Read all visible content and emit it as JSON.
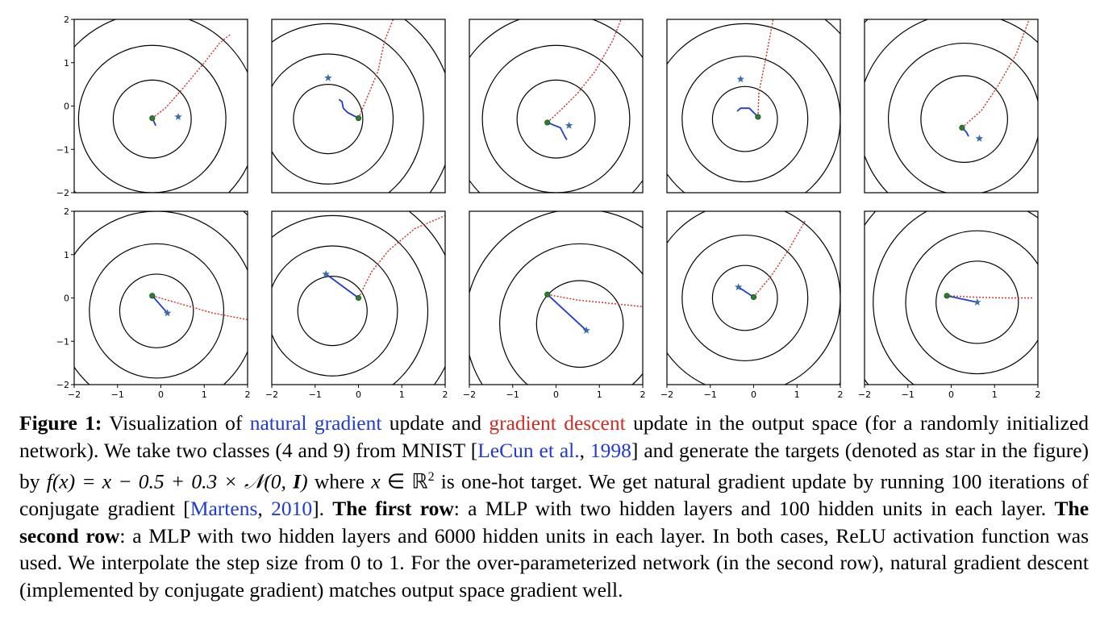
{
  "colors": {
    "natural_gradient": "#1f3ad6",
    "gradient_descent": "#d42a20",
    "star": "#3a6ab0",
    "origin_dot": "#2e7d32",
    "contour": "#000000",
    "caption_blue": "#1f3ad6",
    "caption_red": "#d42a20"
  },
  "chart_data": {
    "type": "scatter",
    "layout": "2 rows x 5 panels",
    "xlim": [
      -2,
      2
    ],
    "ylim": [
      -2,
      2
    ],
    "x_ticks": [
      "−2",
      "−1",
      "0",
      "1",
      "2"
    ],
    "y_ticks": [
      "2",
      "1",
      "0",
      "−1",
      "−2"
    ],
    "legend": "none",
    "grid": false,
    "panels": [
      {
        "row": 1,
        "col": 1,
        "center": [
          -0.2,
          -0.3
        ],
        "start": [
          -0.2,
          -0.28
        ],
        "target": [
          0.4,
          -0.25
        ],
        "contour_radii": [
          0.9,
          1.7,
          2.45,
          3.25
        ],
        "ng_path": [
          [
            -0.2,
            -0.28
          ],
          [
            -0.15,
            -0.38
          ],
          [
            -0.12,
            -0.45
          ]
        ],
        "gd_path": [
          [
            -0.2,
            -0.28
          ],
          [
            0.1,
            -0.05
          ],
          [
            0.5,
            0.4
          ],
          [
            1.0,
            1.0
          ],
          [
            1.35,
            1.45
          ],
          [
            1.6,
            1.65
          ]
        ]
      },
      {
        "row": 1,
        "col": 2,
        "center": [
          -0.7,
          -0.3
        ],
        "start": [
          0.0,
          -0.28
        ],
        "target": [
          -0.7,
          0.65
        ],
        "contour_radii": [
          0.8,
          1.5,
          2.2,
          2.9
        ],
        "ng_path": [
          [
            0.0,
            -0.28
          ],
          [
            -0.25,
            -0.15
          ],
          [
            -0.35,
            -0.05
          ],
          [
            -0.38,
            0.1
          ],
          [
            -0.45,
            0.15
          ]
        ],
        "gd_path": [
          [
            0.0,
            -0.28
          ],
          [
            0.2,
            0.2
          ],
          [
            0.45,
            0.8
          ],
          [
            0.6,
            1.5
          ],
          [
            0.8,
            2.0
          ]
        ]
      },
      {
        "row": 1,
        "col": 3,
        "center": [
          0.0,
          -0.3
        ],
        "start": [
          -0.2,
          -0.38
        ],
        "target": [
          0.3,
          -0.45
        ],
        "contour_radii": [
          0.9,
          1.7,
          2.45,
          3.25
        ],
        "ng_path": [
          [
            -0.2,
            -0.38
          ],
          [
            0.1,
            -0.5
          ],
          [
            0.2,
            -0.7
          ],
          [
            0.25,
            -0.78
          ]
        ],
        "gd_path": [
          [
            -0.2,
            -0.38
          ],
          [
            0.1,
            -0.1
          ],
          [
            0.5,
            0.3
          ],
          [
            0.9,
            0.8
          ],
          [
            1.3,
            1.5
          ],
          [
            1.5,
            2.0
          ]
        ]
      },
      {
        "row": 1,
        "col": 4,
        "center": [
          -0.2,
          -0.3
        ],
        "start": [
          0.1,
          -0.25
        ],
        "target": [
          -0.3,
          0.62
        ],
        "contour_radii": [
          0.75,
          1.45,
          2.2,
          2.95
        ],
        "ng_path": [
          [
            0.1,
            -0.25
          ],
          [
            -0.1,
            -0.05
          ],
          [
            -0.3,
            -0.05
          ],
          [
            -0.38,
            -0.12
          ]
        ],
        "gd_path": [
          [
            0.1,
            -0.25
          ],
          [
            0.12,
            0.3
          ],
          [
            0.3,
            1.2
          ],
          [
            0.45,
            2.0
          ]
        ]
      },
      {
        "row": 1,
        "col": 5,
        "center": [
          0.3,
          -0.3
        ],
        "start": [
          0.25,
          -0.5
        ],
        "target": [
          0.65,
          -0.75
        ],
        "contour_radii": [
          1.0,
          1.75,
          2.45,
          3.2
        ],
        "ng_path": [
          [
            0.25,
            -0.5
          ],
          [
            0.35,
            -0.6
          ],
          [
            0.4,
            -0.7
          ]
        ],
        "gd_path": [
          [
            0.25,
            -0.5
          ],
          [
            0.7,
            -0.1
          ],
          [
            1.1,
            0.5
          ],
          [
            1.5,
            1.2
          ],
          [
            1.8,
            2.0
          ]
        ]
      },
      {
        "row": 2,
        "col": 1,
        "center": [
          -0.1,
          -0.3
        ],
        "start": [
          -0.2,
          0.05
        ],
        "target": [
          0.15,
          -0.35
        ],
        "contour_radii": [
          0.85,
          1.55,
          2.3,
          3.05
        ],
        "ng_path": [
          [
            -0.2,
            0.05
          ],
          [
            0.15,
            -0.35
          ]
        ],
        "gd_path": [
          [
            -0.2,
            0.05
          ],
          [
            0.5,
            -0.15
          ],
          [
            1.2,
            -0.35
          ],
          [
            2.0,
            -0.5
          ]
        ]
      },
      {
        "row": 2,
        "col": 2,
        "center": [
          -0.6,
          -0.3
        ],
        "start": [
          0.0,
          0.0
        ],
        "target": [
          -0.75,
          0.55
        ],
        "contour_radii": [
          0.8,
          1.5,
          2.2,
          2.9
        ],
        "ng_path": [
          [
            0.0,
            0.0
          ],
          [
            -0.75,
            0.55
          ]
        ],
        "gd_path": [
          [
            0.0,
            0.0
          ],
          [
            0.3,
            0.6
          ],
          [
            0.7,
            1.1
          ],
          [
            1.3,
            1.6
          ],
          [
            2.0,
            1.9
          ]
        ]
      },
      {
        "row": 2,
        "col": 3,
        "center": [
          0.55,
          -0.6
        ],
        "start": [
          -0.2,
          0.08
        ],
        "target": [
          0.7,
          -0.75
        ],
        "contour_radii": [
          1.0,
          1.85,
          2.65
        ],
        "ng_path": [
          [
            -0.2,
            0.08
          ],
          [
            0.7,
            -0.75
          ]
        ],
        "gd_path": [
          [
            -0.2,
            0.08
          ],
          [
            0.5,
            -0.05
          ],
          [
            1.2,
            -0.12
          ],
          [
            2.0,
            -0.2
          ]
        ]
      },
      {
        "row": 2,
        "col": 4,
        "center": [
          -0.2,
          0.0
        ],
        "start": [
          0.0,
          0.02
        ],
        "target": [
          -0.35,
          0.25
        ],
        "contour_radii": [
          0.75,
          1.45,
          2.2,
          2.95
        ],
        "ng_path": [
          [
            0.0,
            0.02
          ],
          [
            -0.35,
            0.25
          ]
        ],
        "gd_path": [
          [
            0.0,
            0.02
          ],
          [
            0.4,
            0.5
          ],
          [
            0.8,
            1.1
          ],
          [
            1.2,
            1.8
          ]
        ]
      },
      {
        "row": 2,
        "col": 5,
        "center": [
          0.6,
          -0.1
        ],
        "start": [
          -0.1,
          0.05
        ],
        "target": [
          0.6,
          -0.1
        ],
        "contour_radii": [
          0.95,
          1.65,
          2.4,
          3.15
        ],
        "ng_path": [
          [
            -0.1,
            0.05
          ],
          [
            0.6,
            -0.1
          ]
        ],
        "gd_path": [
          [
            -0.1,
            0.05
          ],
          [
            0.5,
            0.02
          ],
          [
            1.2,
            0.0
          ],
          [
            1.9,
            0.0
          ]
        ]
      }
    ]
  },
  "caption": {
    "label": "Figure 1:",
    "t1": " Visualization of ",
    "natural_gradient": "natural gradient",
    "t2": " update and ",
    "gradient_descent": "gradient descent",
    "t3": " update in the output space (for a randomly initialized network). We take two classes (4 and 9) from MNIST [",
    "cite1_author": "LeCun et al.",
    "t4": ", ",
    "cite1_year": "1998",
    "t5": "] and generate the targets (denoted as star in the figure) by ",
    "math_fx": "f(x) = x − 0.5 + 0.3 × 𝒩(0, ",
    "math_I": "I",
    "math_close": ")",
    "t6": " where ",
    "math_x": "x",
    "math_in": " ∈ ℝ",
    "math_sup": "2",
    "t7": " is one-hot target. We get natural gradient update by running 100 iterations of conjugate gradient [",
    "cite2_author": "Martens",
    "t8": ", ",
    "cite2_year": "2010",
    "t9": "]. ",
    "first_row": "The first row",
    "t10": ": a MLP with two hidden layers and 100 hidden units in each layer. ",
    "second_row": "The second row",
    "t11": ": a MLP with two hidden layers and 6000 hidden units in each layer. In both cases, ReLU activation function was used. We interpolate the step size from 0 to 1. For the over-parameterized network (in the second row), natural gradient descent (implemented by conjugate gradient) matches output space gradient well."
  }
}
